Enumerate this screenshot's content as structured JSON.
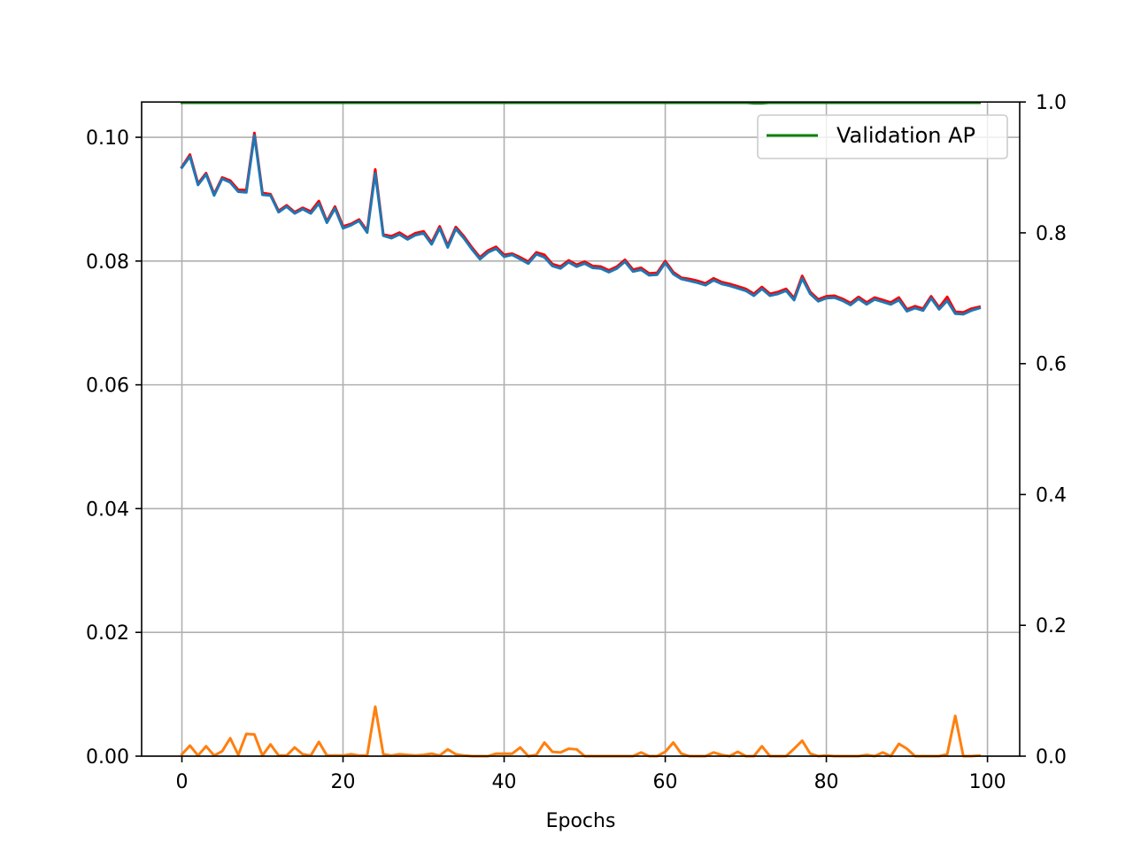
{
  "chart_data": {
    "type": "line",
    "xlabel": "Epochs",
    "ylabel": "",
    "ylabel_right": "",
    "xlim": [
      -5,
      104
    ],
    "ylim": [
      0,
      0.1057
    ],
    "ylim_right": [
      0,
      1.0
    ],
    "x_ticks": [
      0,
      20,
      40,
      60,
      80,
      100
    ],
    "y_ticks": [
      0.0,
      0.02,
      0.04,
      0.06,
      0.08,
      0.1
    ],
    "y_tick_labels": [
      "0.00",
      "0.02",
      "0.04",
      "0.06",
      "0.08",
      "0.10"
    ],
    "y_right_ticks": [
      0.0,
      0.2,
      0.4,
      0.6,
      0.8,
      1.0
    ],
    "y_right_tick_labels": [
      "0.0",
      "0.2",
      "0.4",
      "0.6",
      "0.8",
      "1.0"
    ],
    "grid": true,
    "legend": {
      "placement": "top-right",
      "entries": [
        "Validation AP"
      ]
    },
    "series": [
      {
        "axis": "left",
        "color": "#ff0000",
        "values": [
          0.0952,
          0.0972,
          0.0925,
          0.0942,
          0.0908,
          0.0935,
          0.093,
          0.0915,
          0.0915,
          0.1007,
          0.091,
          0.0908,
          0.0881,
          0.089,
          0.0879,
          0.0886,
          0.088,
          0.0897,
          0.0864,
          0.0888,
          0.0856,
          0.086,
          0.0867,
          0.0849,
          0.0948,
          0.0843,
          0.084,
          0.0846,
          0.0838,
          0.0845,
          0.0848,
          0.083,
          0.0856,
          0.0825,
          0.0855,
          0.084,
          0.0822,
          0.0806,
          0.0817,
          0.0823,
          0.081,
          0.0812,
          0.0806,
          0.0799,
          0.0814,
          0.081,
          0.0795,
          0.0791,
          0.0801,
          0.0794,
          0.0799,
          0.0792,
          0.0791,
          0.0785,
          0.0791,
          0.0802,
          0.0786,
          0.0789,
          0.078,
          0.0781,
          0.08,
          0.0782,
          0.0773,
          0.0771,
          0.0768,
          0.0764,
          0.0772,
          0.0766,
          0.0763,
          0.0759,
          0.0755,
          0.0747,
          0.0758,
          0.0747,
          0.075,
          0.0755,
          0.074,
          0.0776,
          0.075,
          0.0738,
          0.0743,
          0.0744,
          0.0739,
          0.0732,
          0.0742,
          0.0733,
          0.0741,
          0.0737,
          0.0733,
          0.0741,
          0.0722,
          0.0727,
          0.0723,
          0.0743,
          0.0725,
          0.0742,
          0.0718,
          0.0717,
          0.0723,
          0.0726
        ]
      },
      {
        "axis": "left",
        "color": "#1f77b4",
        "values": [
          0.0951,
          0.0969,
          0.0923,
          0.094,
          0.0906,
          0.0933,
          0.0927,
          0.0912,
          0.0911,
          0.1003,
          0.0907,
          0.0906,
          0.0879,
          0.0888,
          0.0877,
          0.0884,
          0.0877,
          0.0893,
          0.0862,
          0.0885,
          0.0853,
          0.0858,
          0.0865,
          0.0846,
          0.0942,
          0.0841,
          0.0837,
          0.0843,
          0.0835,
          0.0842,
          0.0845,
          0.0827,
          0.0853,
          0.0822,
          0.0852,
          0.0837,
          0.0819,
          0.0803,
          0.0814,
          0.082,
          0.0807,
          0.081,
          0.0803,
          0.0796,
          0.0811,
          0.0806,
          0.0792,
          0.0788,
          0.0798,
          0.0791,
          0.0796,
          0.0789,
          0.0788,
          0.0782,
          0.0788,
          0.0799,
          0.0783,
          0.0786,
          0.0777,
          0.0778,
          0.0797,
          0.0779,
          0.0771,
          0.0768,
          0.0765,
          0.0761,
          0.0769,
          0.0763,
          0.076,
          0.0756,
          0.0752,
          0.0744,
          0.0755,
          0.0744,
          0.0747,
          0.0752,
          0.0737,
          0.0772,
          0.0747,
          0.0735,
          0.074,
          0.0741,
          0.0736,
          0.0729,
          0.0739,
          0.073,
          0.0738,
          0.0734,
          0.073,
          0.0737,
          0.0719,
          0.0724,
          0.072,
          0.074,
          0.0722,
          0.0736,
          0.0715,
          0.0714,
          0.072,
          0.0724
        ]
      },
      {
        "axis": "left",
        "color": "#ff7f0e",
        "values": [
          0.0003,
          0.0017,
          0.0001,
          0.0016,
          0.0001,
          0.0008,
          0.0029,
          0.0002,
          0.0036,
          0.0035,
          0.0001,
          0.0019,
          0.0001,
          0.0001,
          0.0014,
          0.0003,
          0.0001,
          0.0023,
          0.0001,
          0.0001,
          0.0001,
          0.0003,
          0.0001,
          0.0001,
          0.008,
          0.0003,
          0.0001,
          0.0003,
          0.0002,
          0.0001,
          0.0002,
          0.0004,
          0.0001,
          0.0011,
          0.0003,
          0.0001,
          0.0,
          0.0,
          0.0,
          0.0004,
          0.0004,
          0.0004,
          0.0014,
          0.0,
          0.0002,
          0.0022,
          0.0007,
          0.0006,
          0.0012,
          0.0011,
          0.0,
          0.0,
          0.0,
          0.0,
          0.0,
          0.0,
          0.0,
          0.0006,
          0.0,
          0.0,
          0.0007,
          0.0022,
          0.0004,
          0.0,
          0.0,
          0.0,
          0.0006,
          0.0002,
          0.0,
          0.0007,
          0.0,
          0.0,
          0.0016,
          0.0,
          0.0,
          0.0,
          0.0012,
          0.0025,
          0.0004,
          0.0,
          0.0001,
          0.0,
          0.0,
          0.0,
          0.0,
          0.0002,
          0.0,
          0.0006,
          0.0,
          0.002,
          0.0012,
          0.0,
          0.0,
          0.0,
          0.0,
          0.0003,
          0.0065,
          0.0,
          0.0,
          0.0001
        ]
      },
      {
        "axis": "right",
        "name": "Validation AP",
        "color": "#008000",
        "values": [
          0.999,
          0.999,
          0.999,
          0.999,
          0.999,
          0.999,
          0.999,
          0.999,
          0.999,
          0.999,
          0.999,
          0.999,
          0.999,
          0.999,
          0.999,
          0.999,
          0.999,
          0.999,
          0.999,
          0.999,
          0.999,
          0.999,
          0.999,
          0.999,
          0.999,
          0.999,
          0.999,
          0.999,
          0.999,
          0.999,
          0.999,
          0.999,
          0.999,
          0.999,
          0.999,
          0.999,
          0.999,
          0.999,
          0.999,
          0.999,
          0.999,
          0.999,
          0.999,
          0.999,
          0.999,
          0.999,
          0.999,
          0.999,
          0.999,
          0.999,
          0.999,
          0.999,
          0.999,
          0.999,
          0.999,
          0.999,
          0.999,
          0.999,
          0.999,
          0.999,
          0.999,
          0.999,
          0.999,
          0.999,
          0.999,
          0.999,
          0.999,
          0.999,
          0.999,
          0.999,
          0.999,
          0.998,
          0.998,
          0.999,
          0.999,
          0.999,
          0.999,
          0.999,
          0.999,
          0.999,
          0.999,
          0.999,
          0.999,
          0.999,
          0.999,
          0.999,
          0.999,
          0.999,
          0.999,
          0.999,
          0.999,
          0.999,
          0.999,
          0.999,
          0.999,
          0.999,
          0.999,
          0.999,
          0.999,
          0.999
        ]
      }
    ]
  }
}
